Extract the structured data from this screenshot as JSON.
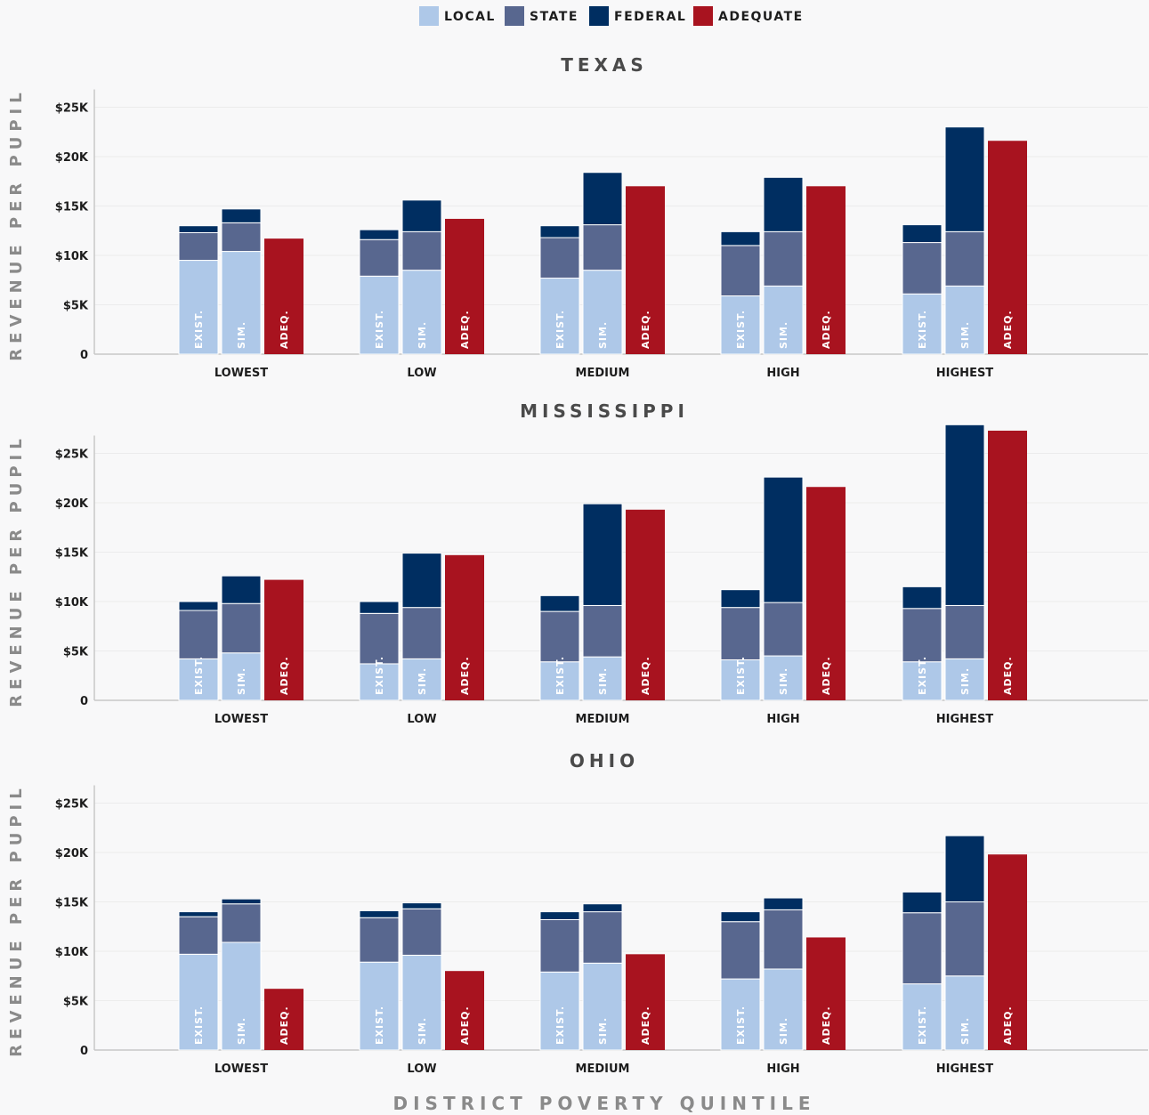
{
  "colors": {
    "local": "#aec8e8",
    "state": "#58678f",
    "federal": "#002e61",
    "adequate": "#a8131f",
    "axis": "#c8c8c8",
    "grid": "#ececec"
  },
  "legend": [
    {
      "key": "local",
      "label": "LOCAL"
    },
    {
      "key": "state",
      "label": "STATE"
    },
    {
      "key": "federal",
      "label": "FEDERAL"
    },
    {
      "key": "adequate",
      "label": "ADEQUATE"
    }
  ],
  "xlabel": "DISTRICT POVERTY QUINTILE",
  "bar_labels": {
    "existing": "EXIST.",
    "simulated": "SIM.",
    "adequate": "ADEQ."
  },
  "chart_data": [
    {
      "type": "bar",
      "title": "TEXAS",
      "ylabel": "REVENUE PER PUPIL",
      "ylim": [
        0,
        25000
      ],
      "yticks": [
        0,
        5000,
        10000,
        15000,
        20000,
        25000
      ],
      "ytick_labels": [
        "0",
        "$5K",
        "$10K",
        "$15K",
        "$20K",
        "$25K"
      ],
      "categories": [
        "LOWEST",
        "LOW",
        "MEDIUM",
        "HIGH",
        "HIGHEST"
      ],
      "existing": {
        "local": [
          9500,
          7900,
          7700,
          5900,
          6100
        ],
        "state": [
          2800,
          3700,
          4100,
          5100,
          5200
        ],
        "federal": [
          700,
          1000,
          1200,
          1400,
          1800
        ]
      },
      "simulated": {
        "local": [
          10400,
          8500,
          8500,
          6900,
          6900
        ],
        "state": [
          2900,
          3900,
          4600,
          5500,
          5500
        ],
        "federal": [
          1400,
          3200,
          5300,
          5500,
          10600
        ]
      },
      "adequate": [
        11700,
        13700,
        17000,
        17000,
        21600
      ]
    },
    {
      "type": "bar",
      "title": "MISSISSIPPI",
      "ylabel": "REVENUE PER PUPIL",
      "ylim": [
        0,
        25000
      ],
      "yticks": [
        0,
        5000,
        10000,
        15000,
        20000,
        25000
      ],
      "ytick_labels": [
        "0",
        "$5K",
        "$10K",
        "$15K",
        "$20K",
        "$25K"
      ],
      "categories": [
        "LOWEST",
        "LOW",
        "MEDIUM",
        "HIGH",
        "HIGHEST"
      ],
      "existing": {
        "local": [
          4200,
          3700,
          3900,
          4100,
          3900
        ],
        "state": [
          4900,
          5100,
          5100,
          5300,
          5400
        ],
        "federal": [
          900,
          1200,
          1600,
          1800,
          2200
        ]
      },
      "simulated": {
        "local": [
          4800,
          4200,
          4400,
          4500,
          4200
        ],
        "state": [
          5000,
          5200,
          5200,
          5400,
          5400
        ],
        "federal": [
          2800,
          5500,
          10300,
          12700,
          18300
        ]
      },
      "adequate": [
        12200,
        14700,
        19300,
        21600,
        27300
      ]
    },
    {
      "type": "bar",
      "title": "OHIO",
      "ylabel": "REVENUE PER PUPIL",
      "ylim": [
        0,
        25000
      ],
      "yticks": [
        0,
        5000,
        10000,
        15000,
        20000,
        25000
      ],
      "ytick_labels": [
        "0",
        "$5K",
        "$10K",
        "$15K",
        "$20K",
        "$25K"
      ],
      "categories": [
        "LOWEST",
        "LOW",
        "MEDIUM",
        "HIGH",
        "HIGHEST"
      ],
      "existing": {
        "local": [
          9700,
          8900,
          7900,
          7200,
          6700
        ],
        "state": [
          3800,
          4500,
          5300,
          5800,
          7200
        ],
        "federal": [
          500,
          700,
          800,
          1000,
          2100
        ]
      },
      "simulated": {
        "local": [
          10900,
          9600,
          8800,
          8200,
          7500
        ],
        "state": [
          3900,
          4700,
          5200,
          6000,
          7500
        ],
        "federal": [
          500,
          600,
          800,
          1200,
          6700
        ]
      },
      "adequate": [
        6200,
        8000,
        9700,
        11400,
        19800
      ]
    }
  ]
}
